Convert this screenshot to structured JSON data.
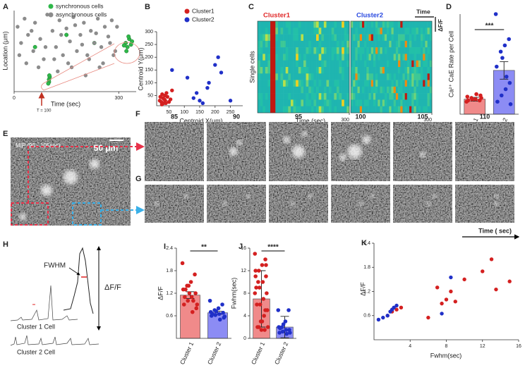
{
  "chart_data": [
    {
      "label": "A",
      "type": "scatter",
      "xlabel": "Time (sec)",
      "ylabel": "Location (μm)",
      "annotation": "T = 100",
      "xlim": [
        0,
        350
      ],
      "ylim": [
        0,
        100
      ],
      "xticks": [
        0,
        300
      ],
      "legend": "top",
      "series": [
        {
          "name": "synchronous cells",
          "color": "#2fb84a",
          "x": [
            100,
            100,
            102,
            98,
            101,
            60,
            150,
            230,
            320,
            325,
            330,
            335,
            322,
            328,
            338,
            315
          ],
          "values": [
            15,
            12,
            18,
            10,
            20,
            55,
            70,
            60,
            60,
            55,
            65,
            58,
            50,
            68,
            62,
            57
          ]
        },
        {
          "name": "asynchronous cells",
          "color": "#8c8c8c",
          "x": [
            10,
            20,
            30,
            40,
            55,
            60,
            75,
            85,
            95,
            110,
            120,
            130,
            140,
            150,
            160,
            170,
            180,
            190,
            200,
            210,
            220,
            230,
            240,
            250,
            260,
            270,
            280,
            290,
            15,
            35,
            50,
            70,
            90,
            115,
            135,
            155,
            175,
            195,
            215,
            235,
            255,
            275,
            295,
            125,
            165,
            205,
            245,
            285
          ],
          "values": [
            80,
            60,
            90,
            70,
            50,
            85,
            65,
            40,
            95,
            75,
            55,
            88,
            45,
            78,
            62,
            92,
            50,
            70,
            85,
            45,
            75,
            60,
            90,
            55,
            80,
            68,
            88,
            50,
            45,
            35,
            75,
            30,
            55,
            40,
            70,
            35,
            82,
            58,
            40,
            72,
            35,
            60,
            80,
            25,
            30,
            20,
            30,
            45
          ]
        }
      ]
    },
    {
      "label": "B",
      "type": "scatter",
      "xlabel": "Centroid X(μm)",
      "ylabel": "Centroid Y(μm)",
      "xlim": [
        10,
        290
      ],
      "ylim": [
        10,
        300
      ],
      "xticks": [
        50,
        100,
        150,
        200,
        250
      ],
      "yticks": [
        50,
        100,
        150,
        200,
        250,
        300
      ],
      "legend": "top",
      "series": [
        {
          "name": "Cluster1",
          "color": "#d42020",
          "x": [
            20,
            25,
            30,
            35,
            40,
            45,
            28,
            33,
            38,
            50,
            42,
            22,
            55,
            60,
            27,
            37
          ],
          "values": [
            30,
            25,
            40,
            35,
            20,
            45,
            55,
            20,
            30,
            25,
            60,
            45,
            35,
            70,
            15,
            50
          ]
        },
        {
          "name": "Cluster2",
          "color": "#2030c8",
          "x": [
            60,
            110,
            130,
            150,
            175,
            180,
            200,
            210,
            220,
            250,
            160,
            140
          ],
          "values": [
            150,
            120,
            40,
            30,
            80,
            100,
            170,
            200,
            140,
            30,
            20,
            60
          ]
        }
      ]
    },
    {
      "label": "C",
      "type": "heatmap",
      "titles": [
        "Cluster1",
        "Cluster2"
      ],
      "title_colors": [
        "#e02828",
        "#2848e0"
      ],
      "ylabel": "Single cells",
      "xlabel": "Time (sec)",
      "xticks": [
        300
      ],
      "scale_labels": [
        "Time",
        "ΔF/F"
      ]
    },
    {
      "label": "D",
      "type": "bar",
      "ylabel": "Ca²⁺ CaE Rate per Cell",
      "categories": [
        "Cluster 1",
        "Cluster 2"
      ],
      "colors": [
        "#f08a8a",
        "#8c8cf4"
      ],
      "point_colors": [
        "#d42020",
        "#2030c8"
      ],
      "ylim": [
        0,
        8
      ],
      "values": [
        1.2,
        3.5
      ],
      "errors": [
        0.15,
        0.7
      ],
      "significance": "***",
      "points": [
        [
          1.0,
          1.1,
          1.2,
          1.3,
          1.4,
          1.5,
          1.6,
          1.2,
          1.1,
          1.3
        ],
        [
          8.0,
          6.0,
          5.5,
          5.0,
          3.8,
          2.5,
          2.0,
          1.5,
          1.0,
          0.8,
          3.0,
          4.5
        ]
      ]
    },
    {
      "label": "I",
      "type": "bar",
      "ylabel": "ΔF/F",
      "categories": [
        "Cluster 1",
        "Cluster 2"
      ],
      "colors": [
        "#f08a8a",
        "#8c8cf4"
      ],
      "point_colors": [
        "#d42020",
        "#2030c8"
      ],
      "ylim": [
        0,
        2.4
      ],
      "yticks": [
        0.6,
        1.2,
        1.8,
        2.4
      ],
      "values": [
        1.15,
        0.68
      ],
      "errors": [
        0.09,
        0.04
      ],
      "significance": "**",
      "points": [
        [
          2.0,
          1.7,
          1.5,
          1.4,
          1.3,
          1.2,
          1.1,
          1.0,
          0.9,
          0.8,
          0.7,
          1.4,
          1.1,
          0.9,
          1.0,
          1.2,
          1.3
        ],
        [
          1.0,
          0.9,
          0.8,
          0.75,
          0.7,
          0.68,
          0.65,
          0.62,
          0.6,
          0.55,
          0.5,
          0.72,
          0.66,
          0.58
        ]
      ]
    },
    {
      "label": "J",
      "type": "bar",
      "ylabel": "Fwhm(sec)",
      "categories": [
        "Cluster 1",
        "Cluster 2"
      ],
      "colors": [
        "#f08a8a",
        "#8c8cf4"
      ],
      "point_colors": [
        "#d42020",
        "#2030c8"
      ],
      "ylim": [
        0,
        16
      ],
      "yticks": [
        0,
        4,
        8,
        12,
        16
      ],
      "values": [
        7,
        2
      ],
      "errors": [
        5,
        1.9
      ],
      "significance": "****",
      "points": [
        [
          15,
          14,
          13,
          12,
          12,
          11,
          10,
          9,
          9,
          8,
          7,
          6,
          6,
          5,
          4,
          3,
          2,
          2,
          1.5,
          1.5,
          10,
          8,
          5,
          3,
          2,
          11,
          13
        ],
        [
          5,
          5,
          3,
          2,
          2,
          1.5,
          1.5,
          1.2,
          1,
          1,
          0.8,
          2.5,
          1.8
        ]
      ]
    },
    {
      "label": "K",
      "type": "scatter",
      "xlabel": "Fwhm(sec)",
      "ylabel": "ΔF/F",
      "annotation": "Time ( sec)",
      "xlim": [
        0,
        16
      ],
      "ylim": [
        0,
        2.4
      ],
      "xticks": [
        4,
        8,
        12,
        16
      ],
      "yticks": [
        0.6,
        1.2,
        1.8,
        2.4
      ],
      "series": [
        {
          "color": "#d42020",
          "x": [
            1.5,
            2,
            2.5,
            3,
            6,
            7,
            7.5,
            8,
            8.5,
            9,
            10,
            12,
            13,
            13.5,
            15
          ],
          "values": [
            0.6,
            0.7,
            0.75,
            0.8,
            0.55,
            1.3,
            0.9,
            1.0,
            1.2,
            0.95,
            1.5,
            1.7,
            2.0,
            1.25,
            1.45
          ]
        },
        {
          "color": "#2030c8",
          "x": [
            0.5,
            1,
            1.5,
            1.8,
            2,
            2.2,
            2.5,
            7.5,
            8.5
          ],
          "values": [
            0.5,
            0.55,
            0.6,
            0.7,
            0.75,
            0.8,
            0.85,
            0.65,
            1.55
          ]
        }
      ]
    }
  ],
  "images": {
    "E": {
      "label": "E",
      "caption": "MIP (90 - 105sec)",
      "scale": "50 μm"
    },
    "F": {
      "label": "F",
      "times": [
        85,
        90,
        95,
        100,
        105,
        110
      ]
    },
    "G": {
      "label": "G"
    }
  },
  "traces": {
    "label": "H",
    "fwhm": "FWHM",
    "dff": "ΔF/F",
    "cells": [
      "Cluster 1 Cell",
      "Cluster 2 Cell"
    ]
  }
}
